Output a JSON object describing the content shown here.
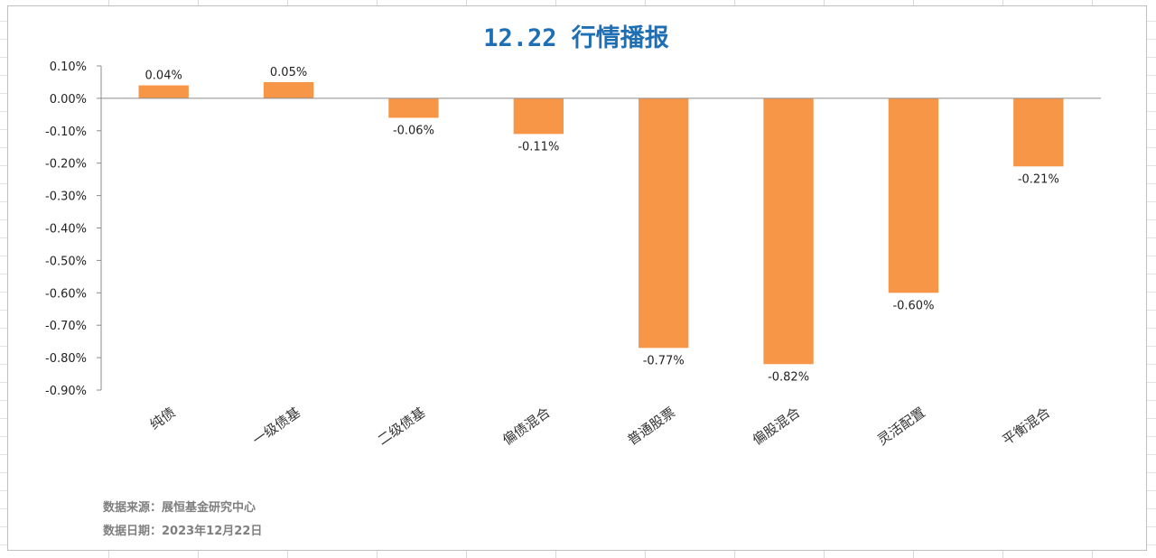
{
  "chart_data": {
    "type": "bar",
    "title": "12.22 行情播报",
    "categories": [
      "纯债",
      "一级债基",
      "二级债基",
      "偏债混合",
      "普通股票",
      "偏股混合",
      "灵活配置",
      "平衡混合"
    ],
    "values": [
      0.04,
      0.05,
      -0.06,
      -0.11,
      -0.77,
      -0.82,
      -0.6,
      -0.21
    ],
    "data_labels": [
      "0.04%",
      "0.05%",
      "-0.06%",
      "-0.11%",
      "-0.77%",
      "-0.82%",
      "-0.60%",
      "-0.21%"
    ],
    "ylim": [
      -0.9,
      0.1
    ],
    "yticks": [
      0.1,
      0.0,
      -0.1,
      -0.2,
      -0.3,
      -0.4,
      -0.5,
      -0.6,
      -0.7,
      -0.8,
      -0.9
    ],
    "ytick_labels": [
      "0.10%",
      "0.00%",
      "-0.10%",
      "-0.20%",
      "-0.30%",
      "-0.40%",
      "-0.50%",
      "-0.60%",
      "-0.70%",
      "-0.80%",
      "-0.90%"
    ],
    "grid": false,
    "bar_color": "#f79646",
    "title_color": "#1f6fb5"
  },
  "notes": {
    "source": "数据来源：展恒基金研究中心",
    "date": "数据日期：2023年12月22日"
  }
}
